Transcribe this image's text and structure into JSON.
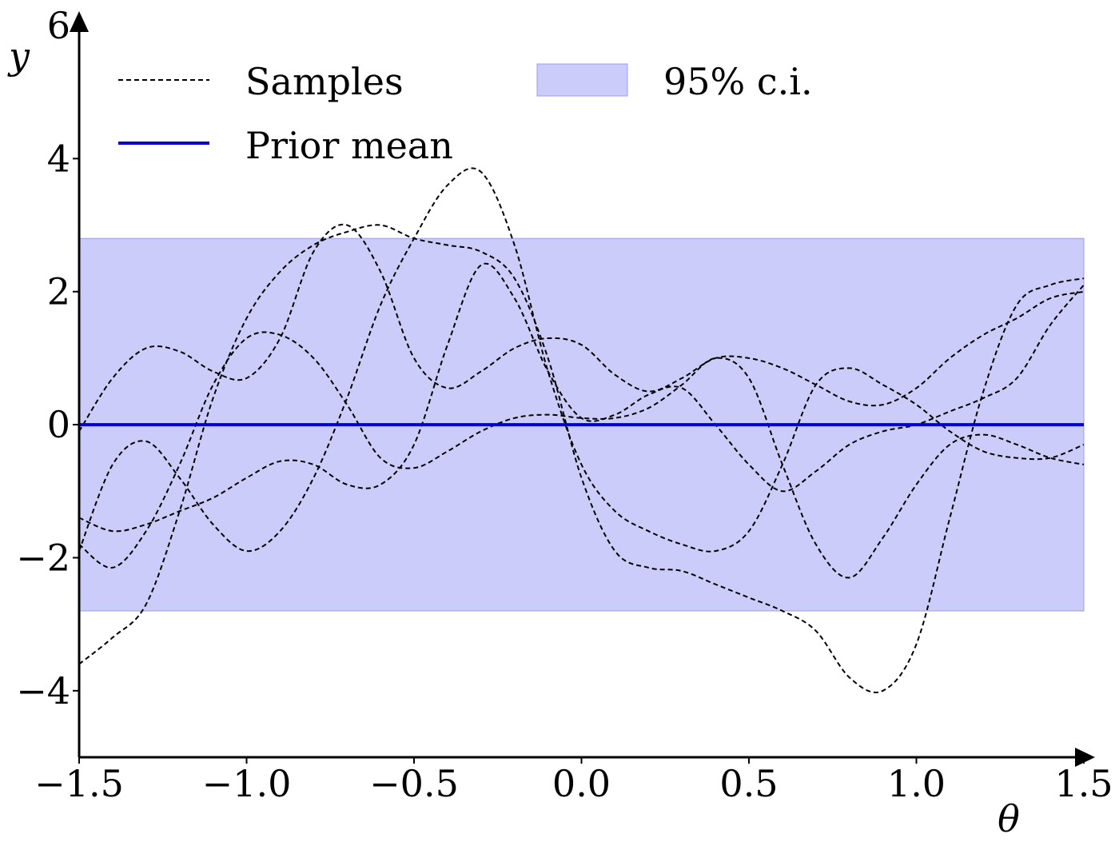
{
  "chart_data": {
    "type": "line",
    "xlabel": "θ",
    "ylabel": "y",
    "xlim": [
      -1.5,
      1.5
    ],
    "ylim": [
      -5,
      6
    ],
    "x_ticks": [
      -1.5,
      -1.0,
      -0.5,
      0.0,
      0.5,
      1.0,
      1.5
    ],
    "x_tick_labels": [
      "−1.5",
      "−1.0",
      "−0.5",
      "0.0",
      "0.5",
      "1.0",
      "1.5"
    ],
    "y_ticks": [
      -4,
      -2,
      0,
      2,
      4,
      6
    ],
    "y_tick_labels": [
      "−4",
      "−2",
      "0",
      "2",
      "4",
      "6"
    ],
    "grid": false,
    "legend_position": "top",
    "legend": {
      "samples": "Samples",
      "prior_mean": "Prior mean",
      "ci": "95% c.i."
    },
    "colors": {
      "prior_mean": "#0000dd",
      "ci_fill": "#ccccfa",
      "ci_edge": "#9b9bef",
      "samples": "#000000"
    },
    "prior_mean": 0,
    "ci": [
      -2.8,
      2.8
    ],
    "series": [
      {
        "x": [
          -1.5,
          -1.4,
          -1.3,
          -1.2,
          -1.1,
          -1.0,
          -0.9,
          -0.8,
          -0.7,
          -0.6,
          -0.5,
          -0.4,
          -0.3,
          -0.2,
          -0.1,
          0.0,
          0.1,
          0.2,
          0.3,
          0.4,
          0.5,
          0.6,
          0.7,
          0.8,
          0.9,
          1.0,
          1.1,
          1.2,
          1.3,
          1.4,
          1.5
        ],
        "y": [
          -0.1,
          0.7,
          1.15,
          1.1,
          0.8,
          0.7,
          1.3,
          2.6,
          3.0,
          2.3,
          1.0,
          0.55,
          0.8,
          1.15,
          1.3,
          1.2,
          0.75,
          0.5,
          0.7,
          1.0,
          1.0,
          0.85,
          0.6,
          0.35,
          0.3,
          0.55,
          1.0,
          1.35,
          1.6,
          1.9,
          2.0
        ]
      },
      {
        "x": [
          -1.5,
          -1.4,
          -1.3,
          -1.2,
          -1.1,
          -1.0,
          -0.9,
          -0.8,
          -0.7,
          -0.6,
          -0.5,
          -0.4,
          -0.3,
          -0.2,
          -0.1,
          0.0,
          0.1,
          0.2,
          0.3,
          0.4,
          0.5,
          0.6,
          0.7,
          0.8,
          0.9,
          1.0,
          1.1,
          1.2,
          1.3,
          1.4,
          1.5
        ],
        "y": [
          -1.4,
          -1.6,
          -1.5,
          -1.3,
          -1.1,
          -0.8,
          -0.55,
          -0.6,
          -0.9,
          -0.9,
          -0.3,
          1.2,
          2.4,
          1.9,
          0.8,
          0.1,
          0.15,
          0.45,
          0.55,
          0.0,
          -0.6,
          -1.0,
          -0.7,
          -0.3,
          -0.1,
          0.0,
          0.2,
          0.4,
          0.7,
          1.5,
          2.1
        ]
      },
      {
        "x": [
          -1.5,
          -1.4,
          -1.3,
          -1.2,
          -1.1,
          -1.0,
          -0.9,
          -0.8,
          -0.7,
          -0.6,
          -0.5,
          -0.4,
          -0.3,
          -0.2,
          -0.1,
          0.0,
          0.1,
          0.2,
          0.3,
          0.4,
          0.5,
          0.6,
          0.7,
          0.8,
          0.9,
          1.0,
          1.1,
          1.2,
          1.3,
          1.4,
          1.5
        ],
        "y": [
          -1.9,
          -0.6,
          -0.25,
          -0.8,
          -1.5,
          -1.9,
          -1.6,
          -0.8,
          0.4,
          1.8,
          2.8,
          3.6,
          3.8,
          2.7,
          0.8,
          -0.6,
          -1.3,
          -1.6,
          -1.8,
          -1.9,
          -1.6,
          -0.6,
          0.6,
          0.85,
          0.6,
          0.3,
          -0.1,
          -0.4,
          -0.5,
          -0.5,
          -0.3
        ]
      },
      {
        "x": [
          -1.5,
          -1.4,
          -1.3,
          -1.2,
          -1.1,
          -1.0,
          -0.9,
          -0.8,
          -0.7,
          -0.6,
          -0.5,
          -0.4,
          -0.3,
          -0.2,
          -0.1,
          0.0,
          0.1,
          0.2,
          0.3,
          0.4,
          0.5,
          0.6,
          0.7,
          0.8,
          0.9,
          1.0,
          1.1,
          1.2,
          1.3,
          1.4,
          1.5
        ],
        "y": [
          -1.8,
          -2.15,
          -1.6,
          -0.6,
          0.6,
          1.3,
          1.35,
          1.0,
          0.3,
          -0.5,
          -0.65,
          -0.4,
          -0.1,
          0.1,
          0.15,
          0.1,
          0.1,
          0.25,
          0.6,
          1.0,
          0.7,
          -0.6,
          -1.8,
          -2.3,
          -1.7,
          -0.9,
          -0.3,
          -0.15,
          -0.3,
          -0.5,
          -0.6
        ]
      },
      {
        "x": [
          -1.5,
          -1.4,
          -1.3,
          -1.2,
          -1.1,
          -1.0,
          -0.9,
          -0.8,
          -0.7,
          -0.6,
          -0.5,
          -0.4,
          -0.3,
          -0.2,
          -0.1,
          0.0,
          0.1,
          0.2,
          0.3,
          0.4,
          0.5,
          0.6,
          0.7,
          0.8,
          0.9,
          1.0,
          1.1,
          1.2,
          1.3,
          1.4,
          1.5
        ],
        "y": [
          -3.6,
          -3.2,
          -2.7,
          -1.3,
          0.4,
          1.6,
          2.3,
          2.7,
          2.9,
          3.0,
          2.8,
          2.7,
          2.6,
          2.2,
          1.0,
          -0.8,
          -1.9,
          -2.15,
          -2.2,
          -2.4,
          -2.6,
          -2.8,
          -3.1,
          -3.8,
          -4.0,
          -3.3,
          -1.4,
          0.5,
          1.8,
          2.1,
          2.2
        ]
      }
    ]
  }
}
